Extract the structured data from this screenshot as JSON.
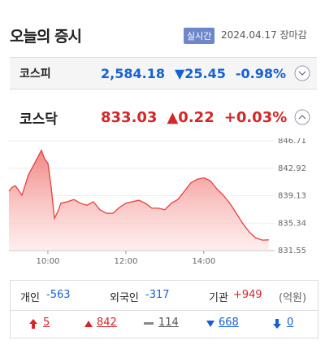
{
  "header": {
    "title": "오늘의 증시",
    "badge": "실시간",
    "date": "2024.04.17 장마감"
  },
  "indices": [
    {
      "name": "코스피",
      "value": "2,584.18",
      "change": "▼25.45",
      "rate": "-0.98%"
    },
    {
      "name": "코스닥",
      "value": "833.03",
      "change": "▲0.22",
      "rate": "+0.03%"
    }
  ],
  "chart_data": {
    "type": "area",
    "color": "#e8403e",
    "x": [
      540,
      545,
      550,
      560,
      570,
      580,
      590,
      595,
      600,
      605,
      610,
      615,
      620,
      630,
      640,
      650,
      660,
      670,
      680,
      690,
      700,
      710,
      720,
      730,
      740,
      750,
      760,
      770,
      780,
      790,
      800,
      810,
      820,
      830,
      840,
      850,
      860,
      870,
      880,
      890,
      900,
      910,
      920,
      930,
      940
    ],
    "values": [
      839.75,
      840.3,
      840.5,
      839.2,
      842.0,
      843.7,
      845.4,
      844.2,
      843.6,
      840.3,
      836.0,
      836.9,
      838.1,
      838.3,
      838.6,
      838.1,
      837.8,
      838.3,
      837.2,
      836.7,
      836.7,
      837.5,
      838.1,
      838.3,
      838.5,
      838.1,
      837.4,
      837.4,
      837.2,
      838.1,
      838.6,
      839.75,
      840.9,
      841.4,
      841.6,
      841.2,
      840.1,
      839.2,
      838.1,
      836.7,
      835.3,
      834.1,
      833.3,
      833.0,
      833.03
    ],
    "xlim": [
      540,
      949
    ],
    "xticks": [
      {
        "value": 600,
        "label": "10:00"
      },
      {
        "value": 720,
        "label": "12:00"
      },
      {
        "value": 840,
        "label": "14:00"
      }
    ],
    "ylim": [
      831.55,
      846.71
    ],
    "yticks": [
      846.71,
      842.92,
      839.13,
      835.34,
      831.55
    ],
    "grid": true
  },
  "investors": [
    {
      "label": "개인",
      "value": "-563"
    },
    {
      "label": "외국인",
      "value": "-317"
    },
    {
      "label": "기관",
      "value": "+949"
    }
  ],
  "unit": "(억원)",
  "breadth": [
    "5",
    "842",
    "114",
    "668",
    "0"
  ]
}
